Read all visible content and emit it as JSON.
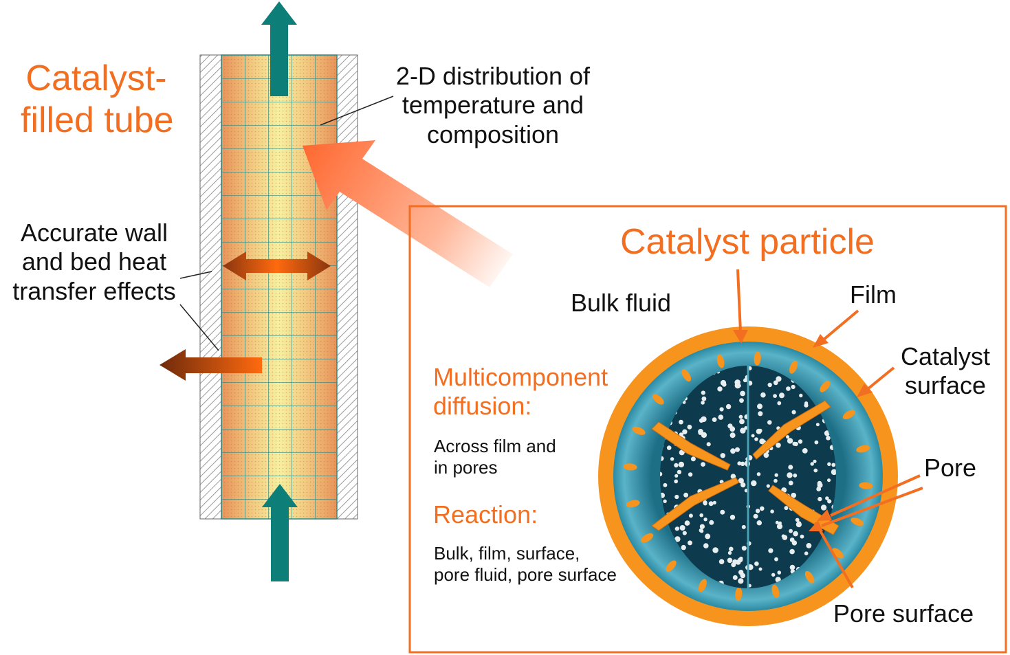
{
  "colors": {
    "accent_orange": "#f26f21",
    "flow_teal": "#0e7f78",
    "heat_brown": "#8a3510",
    "tube_core": "#f6f0a0",
    "tube_edge": "#e8935a",
    "particle_shell": "#f7941e",
    "particle_teal": "#2a8aa3",
    "particle_core": "#0d3a4c",
    "wall_hatch": "#9a9a9a",
    "frame": "#f26f21"
  },
  "icons": {
    "flow_out": "up-arrow-icon",
    "flow_in": "up-arrow-icon",
    "heat_exchange": "double-arrow-icon",
    "heat_loss": "left-arrow-icon",
    "zoom": "zoom-arrow-icon"
  },
  "tube": {
    "title_lines": [
      "Catalyst-",
      "filled tube"
    ],
    "distribution_lines": [
      "2-D distribution of",
      "temperature and",
      "composition"
    ],
    "wall_lines": [
      "Accurate wall",
      "and bed heat",
      "transfer effects"
    ]
  },
  "particle": {
    "title": "Catalyst particle",
    "bulk_fluid": "Bulk fluid",
    "film": "Film",
    "surface_lines": [
      "Catalyst",
      "surface"
    ],
    "pore": "Pore",
    "pore_surface": "Pore surface",
    "diffusion_heading_lines": [
      "Multicomponent",
      "diffusion:"
    ],
    "diffusion_text_lines": [
      "Across film and",
      "in pores"
    ],
    "reaction_heading": "Reaction:",
    "reaction_text_lines": [
      "Bulk, film, surface,",
      "pore fluid, pore surface"
    ]
  }
}
